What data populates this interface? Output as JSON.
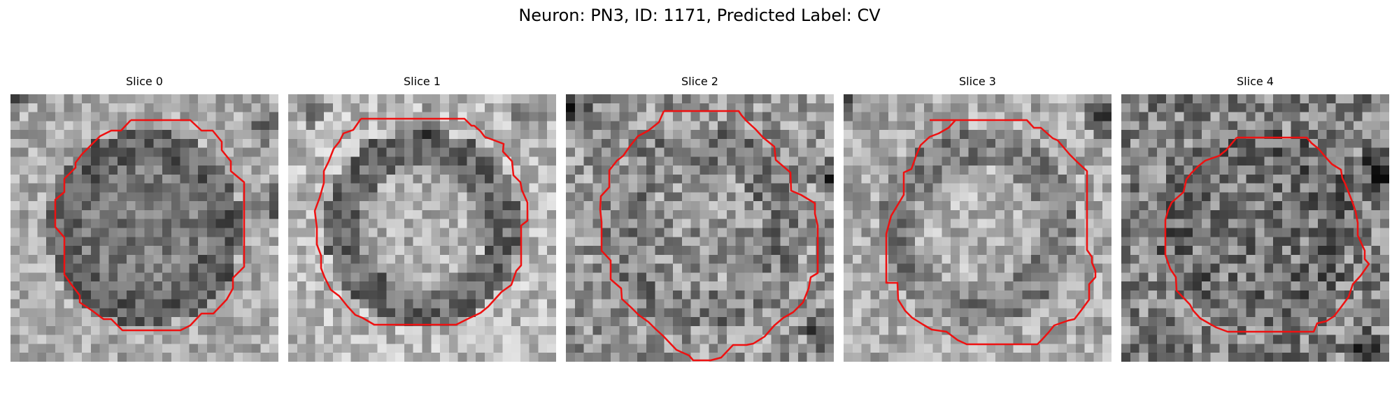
{
  "figure": {
    "title": "Neuron: PN3, ID: 1171, Predicted Label: CV"
  },
  "contour_color": "#ee1111",
  "colormap": "gray",
  "panels": [
    {
      "title": "Slice 0",
      "contour": [
        [
          6.8,
          1.0
        ],
        [
          10.0,
          1.0
        ],
        [
          10.5,
          1.5
        ],
        [
          11.0,
          1.5
        ],
        [
          11.5,
          2.0
        ],
        [
          12.0,
          2.0
        ],
        [
          12.5,
          2.5
        ],
        [
          13.0,
          3.0
        ],
        [
          13.5,
          3.5
        ],
        [
          14.0,
          4.0
        ],
        [
          14.5,
          4.5
        ],
        [
          14.5,
          5.0
        ],
        [
          13.0,
          5.0
        ],
        [
          13.0,
          9.5
        ],
        [
          12.5,
          10.0
        ],
        [
          12.0,
          11.0
        ],
        [
          11.5,
          11.5
        ],
        [
          11.0,
          12.0
        ],
        [
          10.5,
          12.0
        ],
        [
          10.0,
          12.5
        ],
        [
          9.5,
          13.0
        ],
        [
          9.0,
          13.5
        ],
        [
          8.5,
          14.0
        ],
        [
          7.0,
          14.0
        ],
        [
          6.5,
          13.5
        ],
        [
          6.0,
          13.5
        ],
        [
          5.5,
          13.0
        ],
        [
          5.0,
          13.0
        ],
        [
          4.5,
          12.5
        ],
        [
          4.0,
          12.0
        ],
        [
          3.5,
          11.5
        ],
        [
          3.0,
          11.0
        ],
        [
          2.5,
          10.5
        ],
        [
          2.5,
          9.5
        ],
        [
          2.0,
          9.0
        ],
        [
          2.5,
          8.5
        ],
        [
          2.5,
          4.5
        ],
        [
          3.0,
          4.0
        ],
        [
          3.5,
          3.5
        ],
        [
          4.0,
          3.0
        ],
        [
          4.5,
          2.5
        ],
        [
          5.0,
          2.0
        ],
        [
          5.5,
          1.5
        ],
        [
          6.0,
          1.5
        ],
        [
          6.8,
          1.0
        ]
      ],
      "contour_2": []
    },
    {
      "title": "Slice 1"
    },
    {
      "title": "Slice 2"
    },
    {
      "title": "Slice 3"
    },
    {
      "title": "Slice 4"
    }
  ]
}
